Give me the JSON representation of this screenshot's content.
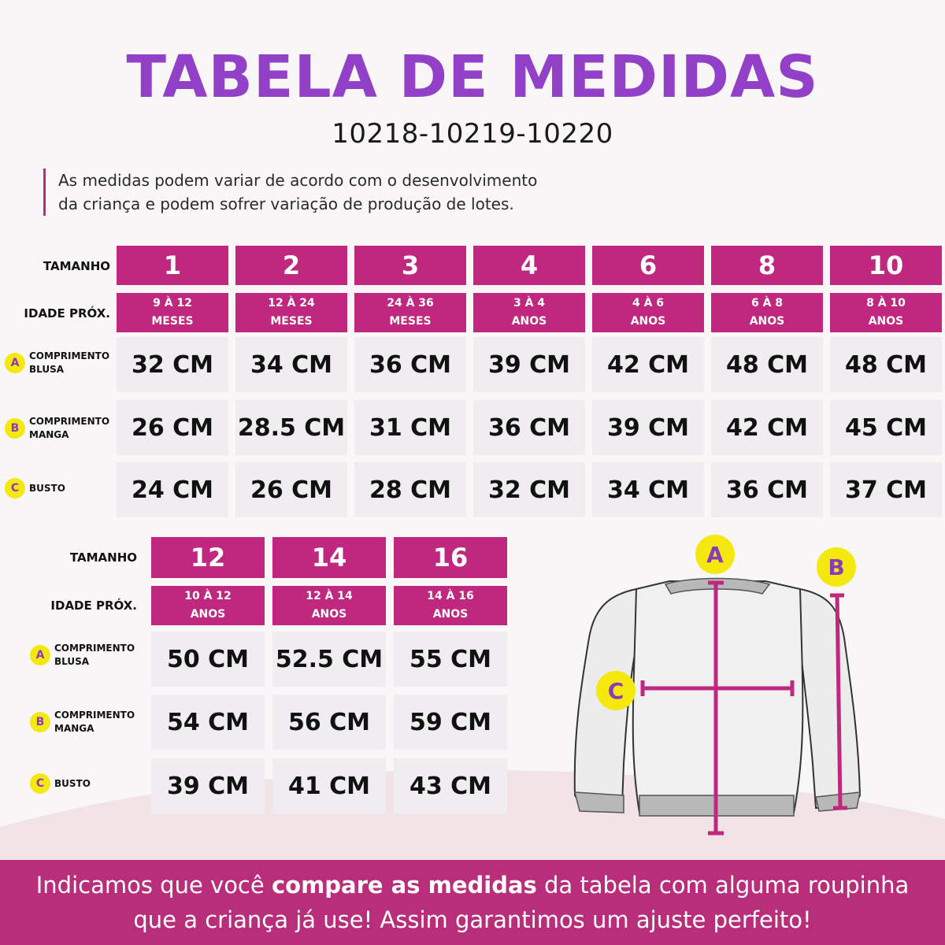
{
  "title": "TABELA DE MEDIDAS",
  "codes": "10218-10219-10220",
  "note": {
    "line1": "As medidas podem variar de acordo com o desenvolvimento",
    "line2": "da criança e podem sofrer variação de produção de lotes."
  },
  "labels": {
    "size": "TAMANHO",
    "age": "IDADE PRÓX.",
    "a_badge": "A",
    "b_badge": "B",
    "c_badge": "C",
    "a_line1": "COMPRIMENTO",
    "a_line2": "BLUSA",
    "b_line1": "COMPRIMENTO",
    "b_line2": "MANGA",
    "c_line1": "BUSTO"
  },
  "table1": {
    "sizes": [
      "1",
      "2",
      "3",
      "4",
      "6",
      "8",
      "10"
    ],
    "ages": [
      [
        "9 À 12",
        "MESES"
      ],
      [
        "12 À 24",
        "MESES"
      ],
      [
        "24 À 36",
        "MESES"
      ],
      [
        "3 À 4",
        "ANOS"
      ],
      [
        "4 À 6",
        "ANOS"
      ],
      [
        "6 À 8",
        "ANOS"
      ],
      [
        "8 À 10",
        "ANOS"
      ]
    ],
    "comprimento_blusa": [
      "32 CM",
      "34 CM",
      "36 CM",
      "39 CM",
      "42 CM",
      "48 CM",
      "48 CM"
    ],
    "comprimento_manga": [
      "26 CM",
      "28.5 CM",
      "31 CM",
      "36 CM",
      "39 CM",
      "42 CM",
      "45 CM"
    ],
    "busto": [
      "24 CM",
      "26 CM",
      "28 CM",
      "32 CM",
      "34 CM",
      "36 CM",
      "37 CM"
    ]
  },
  "table2": {
    "sizes": [
      "12",
      "14",
      "16"
    ],
    "ages": [
      [
        "10 À 12",
        "ANOS"
      ],
      [
        "12 À 14",
        "ANOS"
      ],
      [
        "14 À 16",
        "ANOS"
      ]
    ],
    "comprimento_blusa": [
      "50 CM",
      "52.5 CM",
      "55 CM"
    ],
    "comprimento_manga": [
      "54 CM",
      "56 CM",
      "59 CM"
    ],
    "busto": [
      "39 CM",
      "41 CM",
      "43 CM"
    ]
  },
  "diagram": {
    "a": "A",
    "b": "B",
    "c": "C"
  },
  "footer": {
    "pre": "Indicamos que você ",
    "bold": "compare as medidas",
    "post": " da tabela com alguma roupinha",
    "line2": "que a criança já use! Assim garantimos um ajuste perfeito!"
  },
  "colors": {
    "title": "#9240c8",
    "table_header": "#c0287f",
    "cell": "#efedf0",
    "badge": "#f4e80f",
    "footer": "#b82e7b"
  }
}
